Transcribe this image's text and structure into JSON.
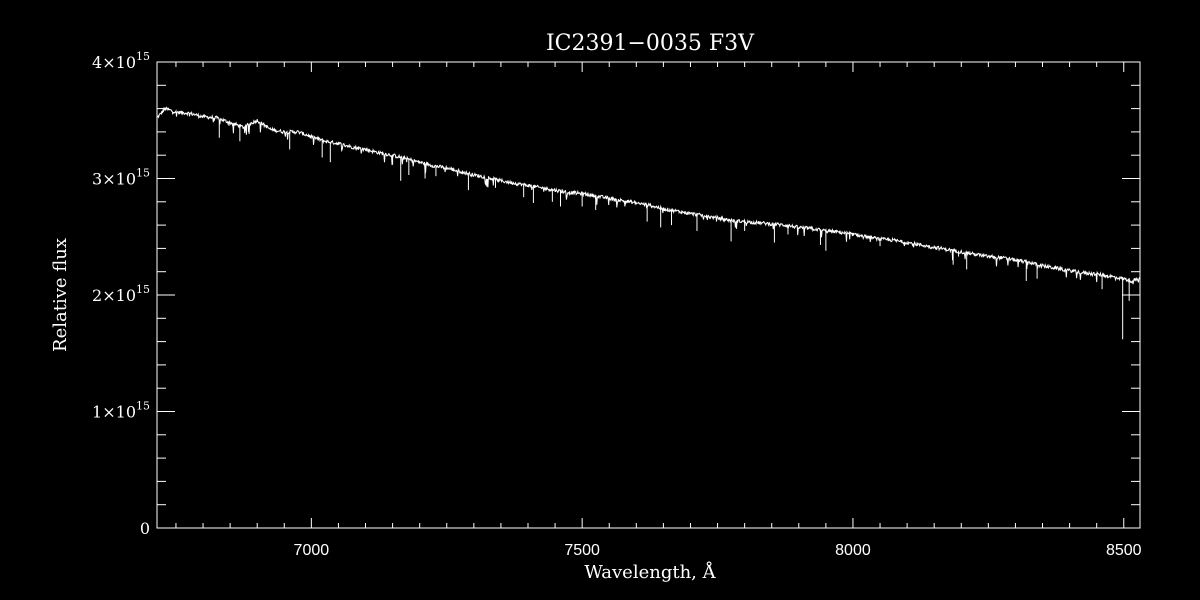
{
  "chart_data": {
    "type": "line",
    "title": "IC2391−0035  F3V",
    "xlabel": "Wavelength, Å",
    "ylabel": "Relative flux",
    "xlim": [
      6715,
      8530
    ],
    "ylim": [
      0,
      4000000000000000.0
    ],
    "x_ticks": [
      7000,
      7500,
      8000,
      8500
    ],
    "x_tick_labels": [
      "7000",
      "7500",
      "8000",
      "8500"
    ],
    "x_minor_step": 50,
    "y_ticks": [
      {
        "value": 0,
        "mantissa": "0",
        "exponent": ""
      },
      {
        "value": 1000000000000000.0,
        "mantissa": "1×10",
        "exponent": "15"
      },
      {
        "value": 2000000000000000.0,
        "mantissa": "2×10",
        "exponent": "15"
      },
      {
        "value": 3000000000000000.0,
        "mantissa": "3×10",
        "exponent": "15"
      },
      {
        "value": 4000000000000000.0,
        "mantissa": "4×10",
        "exponent": "15"
      }
    ],
    "y_minor_step": 200000000000000.0,
    "grid": false,
    "colors": {
      "background": "#000000",
      "foreground": "#ffffff"
    },
    "series": [
      {
        "x": [
          6715,
          6730,
          6750,
          6775,
          6800,
          6825,
          6850,
          6875,
          6900,
          6925,
          6950,
          6975,
          7000,
          7025,
          7050,
          7075,
          7100,
          7125,
          7150,
          7175,
          7200,
          7225,
          7250,
          7275,
          7300,
          7325,
          7350,
          7375,
          7400,
          7425,
          7450,
          7475,
          7500,
          7525,
          7550,
          7575,
          7600,
          7625,
          7650,
          7675,
          7700,
          7725,
          7750,
          7775,
          7800,
          7825,
          7850,
          7875,
          7900,
          7925,
          7950,
          7975,
          8000,
          8025,
          8050,
          8075,
          8100,
          8125,
          8150,
          8175,
          8200,
          8225,
          8250,
          8275,
          8300,
          8325,
          8350,
          8375,
          8400,
          8425,
          8450,
          8475,
          8500,
          8515,
          8530
        ],
        "y": [
          3520000000000000.0,
          3600000000000000.0,
          3570000000000000.0,
          3560000000000000.0,
          3530000000000000.0,
          3520000000000000.0,
          3480000000000000.0,
          3440000000000000.0,
          3500000000000000.0,
          3420000000000000.0,
          3400000000000000.0,
          3400000000000000.0,
          3360000000000000.0,
          3320000000000000.0,
          3300000000000000.0,
          3270000000000000.0,
          3250000000000000.0,
          3220000000000000.0,
          3200000000000000.0,
          3170000000000000.0,
          3140000000000000.0,
          3110000000000000.0,
          3090000000000000.0,
          3060000000000000.0,
          3030000000000000.0,
          3010000000000000.0,
          2980000000000000.0,
          2960000000000000.0,
          2940000000000000.0,
          2920000000000000.0,
          2900000000000000.0,
          2880000000000000.0,
          2870000000000000.0,
          2850000000000000.0,
          2830000000000000.0,
          2810000000000000.0,
          2790000000000000.0,
          2770000000000000.0,
          2740000000000000.0,
          2720000000000000.0,
          2700000000000000.0,
          2680000000000000.0,
          2660000000000000.0,
          2640000000000000.0,
          2630000000000000.0,
          2620000000000000.0,
          2610000000000000.0,
          2600000000000000.0,
          2580000000000000.0,
          2570000000000000.0,
          2550000000000000.0,
          2540000000000000.0,
          2520000000000000.0,
          2500000000000000.0,
          2480000000000000.0,
          2470000000000000.0,
          2450000000000000.0,
          2430000000000000.0,
          2410000000000000.0,
          2390000000000000.0,
          2370000000000000.0,
          2350000000000000.0,
          2330000000000000.0,
          2320000000000000.0,
          2300000000000000.0,
          2280000000000000.0,
          2250000000000000.0,
          2230000000000000.0,
          2210000000000000.0,
          2190000000000000.0,
          2180000000000000.0,
          2160000000000000.0,
          2140000000000000.0,
          2120000000000000.0,
          2140000000000000.0
        ]
      }
    ],
    "absorption_lines": [
      {
        "x": 6830,
        "y": 3350000000000000.0
      },
      {
        "x": 6868,
        "y": 3320000000000000.0
      },
      {
        "x": 6884,
        "y": 3400000000000000.0
      },
      {
        "x": 6960,
        "y": 3250000000000000.0
      },
      {
        "x": 7020,
        "y": 3180000000000000.0
      },
      {
        "x": 7035,
        "y": 3140000000000000.0
      },
      {
        "x": 7150,
        "y": 3120000000000000.0
      },
      {
        "x": 7165,
        "y": 2980000000000000.0
      },
      {
        "x": 7180,
        "y": 3030000000000000.0
      },
      {
        "x": 7210,
        "y": 3000000000000000.0
      },
      {
        "x": 7230,
        "y": 3020000000000000.0
      },
      {
        "x": 7290,
        "y": 2900000000000000.0
      },
      {
        "x": 7340,
        "y": 2920000000000000.0
      },
      {
        "x": 7392,
        "y": 2840000000000000.0
      },
      {
        "x": 7410,
        "y": 2790000000000000.0
      },
      {
        "x": 7445,
        "y": 2800000000000000.0
      },
      {
        "x": 7460,
        "y": 2760000000000000.0
      },
      {
        "x": 7500,
        "y": 2760000000000000.0
      },
      {
        "x": 7525,
        "y": 2730000000000000.0
      },
      {
        "x": 7620,
        "y": 2630000000000000.0
      },
      {
        "x": 7645,
        "y": 2580000000000000.0
      },
      {
        "x": 7665,
        "y": 2600000000000000.0
      },
      {
        "x": 7712,
        "y": 2550000000000000.0
      },
      {
        "x": 7775,
        "y": 2460000000000000.0
      },
      {
        "x": 7800,
        "y": 2550000000000000.0
      },
      {
        "x": 7855,
        "y": 2450000000000000.0
      },
      {
        "x": 7880,
        "y": 2520000000000000.0
      },
      {
        "x": 7940,
        "y": 2430000000000000.0
      },
      {
        "x": 7950,
        "y": 2380000000000000.0
      },
      {
        "x": 8050,
        "y": 2420000000000000.0
      },
      {
        "x": 8185,
        "y": 2260000000000000.0
      },
      {
        "x": 8195,
        "y": 2330000000000000.0
      },
      {
        "x": 8210,
        "y": 2220000000000000.0
      },
      {
        "x": 8320,
        "y": 2120000000000000.0
      },
      {
        "x": 8340,
        "y": 2140000000000000.0
      },
      {
        "x": 8460,
        "y": 2050000000000000.0
      },
      {
        "x": 8498,
        "y": 1620000000000000.0
      },
      {
        "x": 8510,
        "y": 1950000000000000.0
      }
    ]
  }
}
